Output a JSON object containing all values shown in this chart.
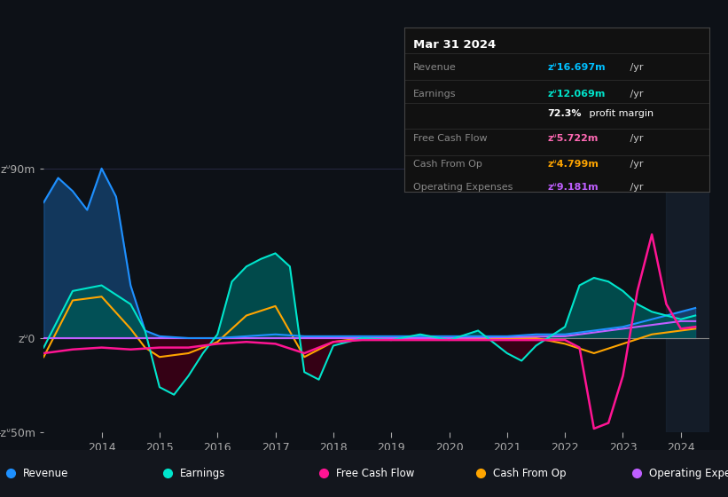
{
  "bg_color": "#0d1117",
  "plot_bg_color": "#0d1117",
  "grid_color": "#333355",
  "title_box": {
    "date": "Mar 31 2024",
    "rows": [
      {
        "label": "Revenue",
        "value": "zᐡ16.697m /yr",
        "value_color": "#00bfff"
      },
      {
        "label": "Earnings",
        "value": "zᐡ12.069m /yr",
        "value_color": "#00e5cc"
      },
      {
        "label": "",
        "value": "72.3% profit margin",
        "value_color": "#ffffff"
      },
      {
        "label": "Free Cash Flow",
        "value": "zᐡ5.722m /yr",
        "value_color": "#ff69b4"
      },
      {
        "label": "Cash From Op",
        "value": "zᐡ4.799m /yr",
        "value_color": "#ffa500"
      },
      {
        "label": "Operating Expenses",
        "value": "zᐡ9.181m /yr",
        "value_color": "#bf5fff"
      }
    ]
  },
  "ylim": [
    -50,
    95
  ],
  "yticks": [
    -50,
    0,
    90
  ],
  "ytick_labels": [
    "-zᐡ50m",
    "zᐡ0",
    "zᐡ90m"
  ],
  "xlim_start": 2013.0,
  "xlim_end": 2024.5,
  "xticks": [
    2014,
    2015,
    2016,
    2017,
    2018,
    2019,
    2020,
    2021,
    2022,
    2023,
    2024
  ],
  "colors": {
    "revenue": "#1e90ff",
    "earnings": "#00e5cc",
    "fcf": "#ff1493",
    "cashfromop": "#ffa500",
    "opex": "#bf5fff"
  },
  "legend": [
    {
      "label": "Revenue",
      "color": "#1e90ff"
    },
    {
      "label": "Earnings",
      "color": "#00e5cc"
    },
    {
      "label": "Free Cash Flow",
      "color": "#ff1493"
    },
    {
      "label": "Cash From Op",
      "color": "#ffa500"
    },
    {
      "label": "Operating Expenses",
      "color": "#bf5fff"
    }
  ],
  "revenue_x": [
    2013.0,
    2013.25,
    2013.5,
    2013.75,
    2014.0,
    2014.25,
    2014.5,
    2014.75,
    2015.0,
    2015.5,
    2016.0,
    2016.5,
    2017.0,
    2017.5,
    2018.0,
    2018.5,
    2019.0,
    2019.5,
    2020.0,
    2020.5,
    2021.0,
    2021.5,
    2022.0,
    2022.5,
    2023.0,
    2023.5,
    2024.0,
    2024.25
  ],
  "revenue_y": [
    72,
    85,
    78,
    68,
    90,
    75,
    28,
    4,
    1,
    0,
    0,
    1,
    2,
    1,
    1,
    1,
    1,
    1,
    1,
    1,
    1,
    2,
    2,
    4,
    6,
    10,
    14,
    16
  ],
  "earnings_x": [
    2013.0,
    2013.5,
    2014.0,
    2014.5,
    2014.75,
    2015.0,
    2015.25,
    2015.5,
    2015.75,
    2016.0,
    2016.25,
    2016.5,
    2016.75,
    2017.0,
    2017.25,
    2017.5,
    2017.75,
    2018.0,
    2018.5,
    2019.0,
    2019.5,
    2020.0,
    2020.5,
    2021.0,
    2021.25,
    2021.5,
    2022.0,
    2022.25,
    2022.5,
    2022.75,
    2023.0,
    2023.25,
    2023.5,
    2023.75,
    2024.0,
    2024.25
  ],
  "earnings_y": [
    -5,
    25,
    28,
    18,
    4,
    -26,
    -30,
    -20,
    -8,
    2,
    30,
    38,
    42,
    45,
    38,
    -18,
    -22,
    -4,
    0,
    -1,
    2,
    -1,
    4,
    -8,
    -12,
    -4,
    6,
    28,
    32,
    30,
    25,
    18,
    14,
    12,
    10,
    12
  ],
  "fcf_x": [
    2013.0,
    2013.5,
    2014.0,
    2014.5,
    2015.0,
    2015.5,
    2016.0,
    2016.5,
    2017.0,
    2017.5,
    2018.0,
    2018.5,
    2019.0,
    2019.5,
    2020.0,
    2020.5,
    2021.0,
    2021.5,
    2022.0,
    2022.25,
    2022.5,
    2022.75,
    2023.0,
    2023.25,
    2023.5,
    2023.75,
    2024.0,
    2024.25
  ],
  "fcf_y": [
    -8,
    -6,
    -5,
    -6,
    -5,
    -5,
    -3,
    -2,
    -3,
    -8,
    -2,
    -1,
    -1,
    -1,
    -1,
    -1,
    -1,
    -1,
    -1,
    -5,
    -48,
    -45,
    -20,
    25,
    55,
    18,
    5,
    6
  ],
  "cashfromop_x": [
    2013.0,
    2013.5,
    2014.0,
    2014.5,
    2014.75,
    2015.0,
    2015.5,
    2016.0,
    2016.5,
    2017.0,
    2017.5,
    2018.0,
    2018.5,
    2019.0,
    2019.5,
    2020.0,
    2020.5,
    2021.0,
    2021.5,
    2022.0,
    2022.5,
    2023.0,
    2023.5,
    2024.0,
    2024.25
  ],
  "cashfromop_y": [
    -10,
    20,
    22,
    5,
    -5,
    -10,
    -8,
    -2,
    12,
    17,
    -10,
    -2,
    0,
    0,
    0,
    0,
    0,
    0,
    0,
    -3,
    -8,
    -3,
    2,
    4,
    5
  ],
  "opex_x": [
    2013.0,
    2020.0,
    2022.0,
    2022.5,
    2023.0,
    2023.5,
    2024.0,
    2024.25
  ],
  "opex_y": [
    0,
    0,
    1,
    3,
    5,
    7,
    9,
    9
  ]
}
